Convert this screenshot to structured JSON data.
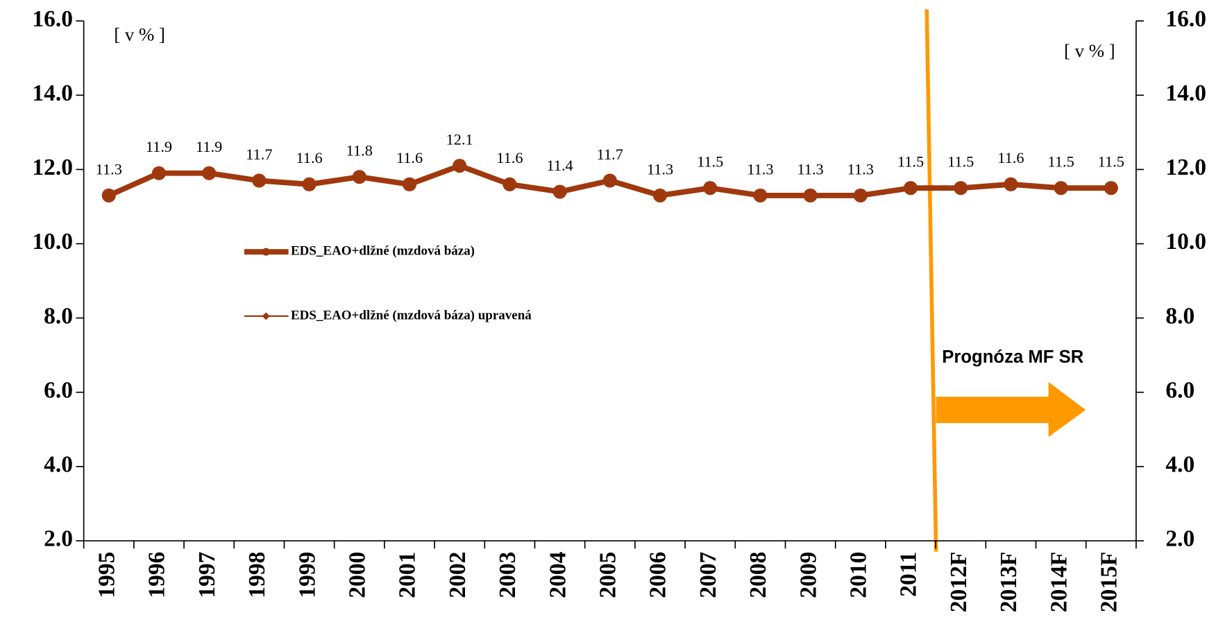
{
  "chart_data": {
    "type": "line",
    "categories": [
      "1995",
      "1996",
      "1997",
      "1998",
      "1999",
      "2000",
      "2001",
      "2002",
      "2003",
      "2004",
      "2005",
      "2006",
      "2007",
      "2008",
      "2009",
      "2010",
      "2011",
      "2012F",
      "2013F",
      "2014F",
      "2015F"
    ],
    "series": [
      {
        "name": "EDS_EAO+dlžné (mzdová báza)",
        "color": "#a0380e",
        "line_width": 7,
        "marker": "circle",
        "values": [
          11.3,
          11.9,
          11.9,
          11.7,
          11.6,
          11.8,
          11.6,
          12.1,
          11.6,
          11.4,
          11.7,
          11.3,
          11.5,
          11.3,
          11.3,
          11.3,
          11.5,
          11.5,
          11.6,
          11.5,
          11.5
        ]
      },
      {
        "name": "EDS_EAO+dlžné (mzdová báza) upravená",
        "color": "#a0380e",
        "line_width": 2,
        "marker": "diamond",
        "values": [
          11.3,
          11.9,
          11.9,
          11.7,
          11.6,
          11.8,
          11.6,
          12.1,
          11.6,
          11.4,
          11.7,
          11.3,
          11.5,
          11.3,
          11.3,
          11.3,
          11.5,
          null,
          null,
          null,
          null
        ]
      }
    ],
    "ylim": [
      2,
      16
    ],
    "yticks": [
      {
        "value": 2,
        "label": "2.0"
      },
      {
        "value": 4,
        "label": "4.0"
      },
      {
        "value": 6,
        "label": "6.0"
      },
      {
        "value": 8,
        "label": "8.0"
      },
      {
        "value": 10,
        "label": "10.0"
      },
      {
        "value": 12,
        "label": "12.0"
      },
      {
        "value": 14,
        "label": "14.0"
      },
      {
        "value": 16,
        "label": "16.0"
      }
    ],
    "y2lim": [
      2,
      16
    ],
    "y2ticks": [
      {
        "value": 2,
        "label": "2.0"
      },
      {
        "value": 4,
        "label": "4.0"
      },
      {
        "value": 6,
        "label": "6.0"
      },
      {
        "value": 8,
        "label": "8.0"
      },
      {
        "value": 10,
        "label": "10.0"
      },
      {
        "value": 12,
        "label": "12.0"
      },
      {
        "value": 14,
        "label": "14.0"
      },
      {
        "value": 16,
        "label": "16.0"
      }
    ],
    "annotations": [
      "[ v % ]",
      "[ v % ]",
      "Prognóza MF SR"
    ],
    "grid": false,
    "data_labels": true
  }
}
